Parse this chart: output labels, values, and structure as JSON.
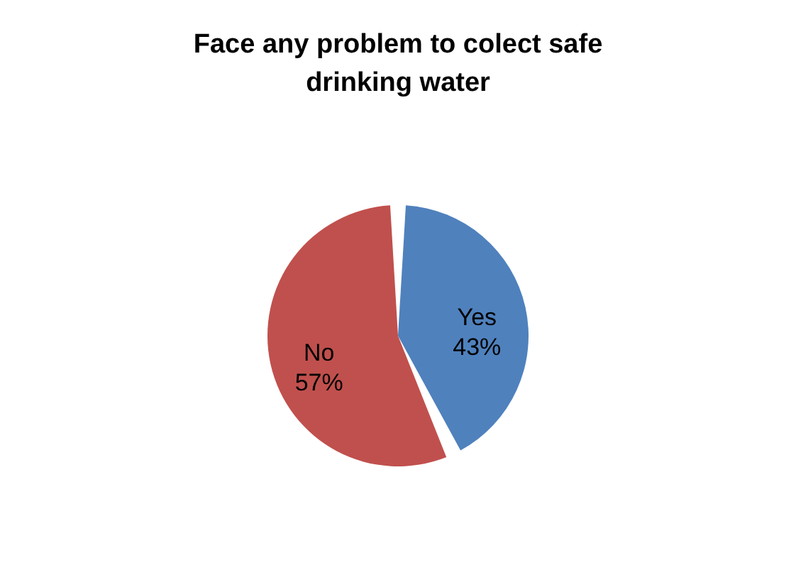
{
  "chart_data": {
    "type": "pie",
    "title": "Face any problem to colect safe drinking water",
    "categories": [
      "Yes",
      "No"
    ],
    "values": [
      43,
      57
    ],
    "colors": [
      "#4f81bd",
      "#c0504d"
    ],
    "data_labels": true,
    "value_labels": [
      "43%",
      "57%"
    ],
    "legend": false
  }
}
